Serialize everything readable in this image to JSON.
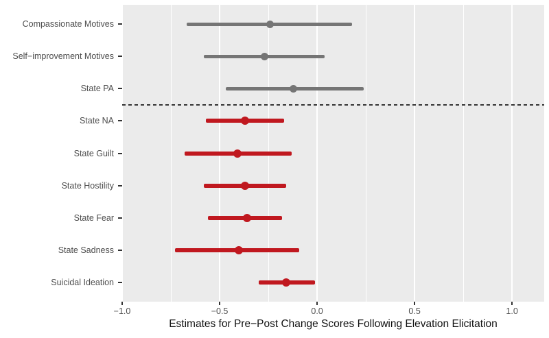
{
  "chart_data": {
    "type": "scatter",
    "variant": "forest_pointrange_horizontal",
    "title": "",
    "xlabel": "Estimates for Pre−Post Change Scores Following Elevation Elicitation",
    "ylabel": "",
    "xlim": [
      -1.0,
      1.165
    ],
    "x_major_ticks": [
      -1.0,
      -0.5,
      0.0,
      0.5,
      1.0
    ],
    "x_tick_labels": [
      "−1.0",
      "−0.5",
      "0.0",
      "0.5",
      "1.0"
    ],
    "x_minor_ticks": [
      -0.75,
      -0.25,
      0.25,
      0.75
    ],
    "grid": "white major and minor vertical gridlines on grey panel",
    "legend": "none",
    "separator": {
      "style": "dashed-horizontal",
      "between_labels": [
        "State PA",
        "State NA"
      ],
      "position_after_row_index": 2
    },
    "rows": [
      {
        "label": "Compassionate Motives",
        "estimate": -0.24,
        "ci_low": -0.67,
        "ci_high": 0.18,
        "color_key": "gray"
      },
      {
        "label": "Self−improvement Motives",
        "estimate": -0.27,
        "ci_low": -0.58,
        "ci_high": 0.04,
        "color_key": "gray"
      },
      {
        "label": "State PA",
        "estimate": -0.12,
        "ci_low": -0.47,
        "ci_high": 0.24,
        "color_key": "gray"
      },
      {
        "label": "State NA",
        "estimate": -0.37,
        "ci_low": -0.57,
        "ci_high": -0.17,
        "color_key": "red"
      },
      {
        "label": "State Guilt",
        "estimate": -0.41,
        "ci_low": -0.68,
        "ci_high": -0.13,
        "color_key": "red"
      },
      {
        "label": "State Hostility",
        "estimate": -0.37,
        "ci_low": -0.58,
        "ci_high": -0.16,
        "color_key": "red"
      },
      {
        "label": "State Fear",
        "estimate": -0.36,
        "ci_low": -0.56,
        "ci_high": -0.18,
        "color_key": "red"
      },
      {
        "label": "State Sadness",
        "estimate": -0.4,
        "ci_low": -0.73,
        "ci_high": -0.09,
        "color_key": "red"
      },
      {
        "label": "Suicidal Ideation",
        "estimate": -0.16,
        "ci_low": -0.3,
        "ci_high": -0.01,
        "color_key": "red"
      }
    ],
    "colors": {
      "red": "#C0181F",
      "gray": "#757575",
      "panel_bg": "#EBEBEB",
      "grid": "#FFFFFF",
      "axis_text": "#4D4D4D",
      "axis_title": "#111111",
      "separator": "#333333"
    }
  }
}
